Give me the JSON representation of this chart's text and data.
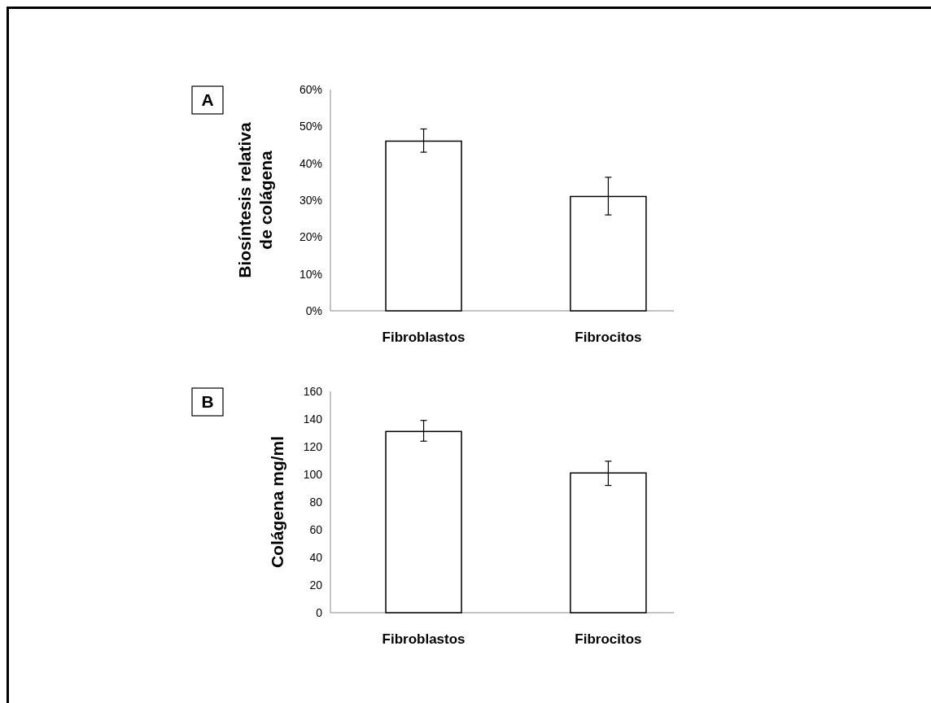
{
  "chart_data": [
    {
      "type": "bar",
      "ylabel": "Biosíntesis relativa\nde colágena",
      "categories": [
        "Fibroblastos",
        "Fibrocitos"
      ],
      "values": [
        46,
        31
      ],
      "errors": [
        [
          43,
          49.3
        ],
        [
          26,
          36.2
        ]
      ],
      "color": "#ffffff",
      "ylim": [
        0,
        60
      ],
      "yticks": [
        {
          "value": 0,
          "label": "0%"
        },
        {
          "value": 10,
          "label": "10%"
        },
        {
          "value": 20,
          "label": "20%"
        },
        {
          "value": 30,
          "label": "30%"
        },
        {
          "value": 40,
          "label": "40%"
        },
        {
          "value": 50,
          "label": "50%"
        },
        {
          "value": 60,
          "label": "60%"
        }
      ],
      "annotations": [
        "A"
      ],
      "grid": false
    },
    {
      "type": "bar",
      "ylabel": "Colágena  mg/ml",
      "categories": [
        "Fibroblastos",
        "Fibrocitos"
      ],
      "values": [
        131,
        101
      ],
      "errors": [
        [
          124,
          139
        ],
        [
          92,
          109.5
        ]
      ],
      "color": "#ffffff",
      "ylim": [
        0,
        160
      ],
      "yticks": [
        0,
        20,
        40,
        60,
        80,
        100,
        120,
        140,
        160
      ],
      "annotations": [
        "B"
      ],
      "grid": false
    }
  ]
}
